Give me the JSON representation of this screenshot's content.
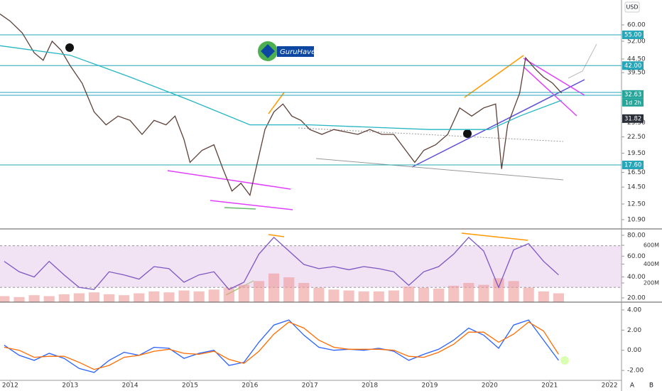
{
  "usd": "USD",
  "logo": "GuruHaven",
  "scale_buttons": [
    "A",
    "B"
  ],
  "countdown": "1d 2h",
  "chart_data": [
    {
      "type": "line",
      "log": true,
      "xlim": [
        2011.83,
        2022.2
      ],
      "ylim": [
        10.05,
        74.6
      ],
      "yticks": [
        {
          "value": 60,
          "label": "60.00"
        },
        {
          "value": 52,
          "label": "52.00"
        },
        {
          "value": 44.5,
          "label": "44.50"
        },
        {
          "value": 39.5,
          "label": "39.50"
        },
        {
          "value": 25.5,
          "label": "25.50"
        },
        {
          "value": 22.5,
          "label": "22.50"
        },
        {
          "value": 19.5,
          "label": "19.50"
        },
        {
          "value": 16.5,
          "label": "16.50"
        },
        {
          "value": 14.5,
          "label": "14.50"
        },
        {
          "value": 12.5,
          "label": "12.50"
        },
        {
          "value": 10.9,
          "label": "10.90"
        }
      ],
      "levels": [
        55,
        42,
        33.2,
        32.4,
        17.6
      ],
      "level_color": "#26a6b8",
      "price_labels": [
        {
          "value": 55,
          "label": "55.00",
          "color": "#26a6b8"
        },
        {
          "value": 42,
          "label": "42.00",
          "color": "#26a6b8"
        },
        {
          "value": 32.63,
          "label": "32.63",
          "color": "#26a69a"
        },
        {
          "value": 31.82,
          "label": "31.82",
          "color": "#2a2e39"
        },
        {
          "value": 17.6,
          "label": "17.60",
          "color": "#26a6b8"
        }
      ],
      "series": [
        {
          "color": "#5d4037",
          "x": [
            2011.83,
            2012.0,
            2012.2,
            2012.4,
            2012.55,
            2012.7,
            2012.85,
            2013.0,
            2013.2,
            2013.4,
            2013.6,
            2013.8,
            2014.0,
            2014.2,
            2014.4,
            2014.6,
            2014.75,
            2014.9,
            2015.0,
            2015.2,
            2015.4,
            2015.55,
            2015.7,
            2015.85,
            2016.0,
            2016.1,
            2016.25,
            2016.4,
            2016.55,
            2016.7,
            2016.85,
            2017.0,
            2017.2,
            2017.4,
            2017.6,
            2017.8,
            2018.0,
            2018.2,
            2018.4,
            2018.6,
            2018.75,
            2018.9,
            2019.1,
            2019.3,
            2019.5,
            2019.7,
            2019.9,
            2020.1,
            2020.2,
            2020.3,
            2020.5,
            2020.6,
            2020.75,
            2020.9,
            2021.05,
            2021.2
          ],
          "values": [
            66,
            62,
            56,
            47,
            44,
            52,
            48,
            42,
            36,
            28,
            25,
            27,
            26,
            23,
            26,
            25,
            27,
            22,
            18,
            20,
            21,
            17,
            14,
            15,
            13.5,
            17,
            24,
            28,
            30,
            27,
            26,
            24,
            23,
            24,
            23.5,
            23,
            24,
            23,
            23,
            20,
            18,
            20,
            21,
            23,
            29,
            27,
            29,
            30,
            17,
            25,
            33,
            45,
            41,
            38,
            36,
            33
          ]
        },
        {
          "color": "#26b5c2",
          "x": [
            2011.83,
            2013,
            2014,
            2015,
            2016,
            2017,
            2018,
            2019,
            2019.5,
            2020,
            2020.5,
            2021.2
          ],
          "values": [
            50,
            46,
            38,
            31,
            25,
            25,
            24.5,
            24,
            24,
            24,
            27,
            31
          ]
        }
      ]
    },
    {
      "type": "line",
      "xlim": [
        2011.83,
        2022.2
      ],
      "ylim": [
        15.9,
        86.1
      ],
      "band": [
        30,
        70
      ],
      "band_color": "#e1bee7",
      "yticks": [
        {
          "value": 80,
          "label": "80.00"
        },
        {
          "value": 60,
          "label": "60.00"
        },
        {
          "value": 40,
          "label": "40.00"
        },
        {
          "value": 20,
          "label": "20.00"
        }
      ],
      "y2lim": [
        -4000000,
        774000000
      ],
      "y2ticks": [
        {
          "value": 600000000,
          "label": "600M"
        },
        {
          "value": 400000000,
          "label": "400M"
        },
        {
          "value": 200000000,
          "label": "200M"
        }
      ],
      "x": [
        2011.9,
        2012.15,
        2012.4,
        2012.65,
        2012.9,
        2013.15,
        2013.4,
        2013.65,
        2013.9,
        2014.15,
        2014.4,
        2014.65,
        2014.9,
        2015.15,
        2015.4,
        2015.65,
        2015.9,
        2016.15,
        2016.4,
        2016.65,
        2016.9,
        2017.15,
        2017.4,
        2017.65,
        2017.9,
        2018.15,
        2018.4,
        2018.65,
        2018.9,
        2019.15,
        2019.4,
        2019.65,
        2019.9,
        2020.15,
        2020.4,
        2020.65,
        2020.9,
        2021.15
      ],
      "series": [
        {
          "type": "bar",
          "axis": "y2",
          "color": "#ef9a9a",
          "values": [
            60000000,
            50000000,
            70000000,
            60000000,
            80000000,
            90000000,
            100000000,
            80000000,
            70000000,
            90000000,
            110000000,
            100000000,
            120000000,
            110000000,
            130000000,
            150000000,
            180000000,
            220000000,
            300000000,
            260000000,
            200000000,
            150000000,
            130000000,
            120000000,
            110000000,
            110000000,
            120000000,
            160000000,
            150000000,
            140000000,
            170000000,
            200000000,
            180000000,
            250000000,
            220000000,
            150000000,
            110000000,
            90000000
          ]
        },
        {
          "color": "#7e57c2",
          "values": [
            55,
            45,
            40,
            55,
            42,
            30,
            28,
            45,
            42,
            38,
            50,
            48,
            35,
            42,
            45,
            28,
            35,
            62,
            78,
            65,
            52,
            48,
            50,
            47,
            50,
            48,
            45,
            32,
            45,
            50,
            62,
            78,
            65,
            30,
            66,
            72,
            55,
            42
          ]
        }
      ]
    },
    {
      "type": "line",
      "xlim": [
        2011.83,
        2022.2
      ],
      "ylim": [
        -2.98,
        4.56
      ],
      "yticks": [
        {
          "value": 4,
          "label": "4.00"
        },
        {
          "value": 2,
          "label": "2.00"
        },
        {
          "value": 0,
          "label": "0.00"
        },
        {
          "value": -2,
          "label": "-2.00"
        }
      ],
      "xticks": [
        2012,
        2013,
        2014,
        2015,
        2016,
        2017,
        2018,
        2019,
        2020,
        2021,
        2022
      ],
      "x": [
        2011.9,
        2012.15,
        2012.4,
        2012.65,
        2012.9,
        2013.15,
        2013.4,
        2013.65,
        2013.9,
        2014.15,
        2014.4,
        2014.65,
        2014.9,
        2015.15,
        2015.4,
        2015.65,
        2015.9,
        2016.15,
        2016.4,
        2016.65,
        2016.9,
        2017.15,
        2017.4,
        2017.65,
        2017.9,
        2018.15,
        2018.4,
        2018.65,
        2018.9,
        2019.15,
        2019.4,
        2019.65,
        2019.9,
        2020.15,
        2020.4,
        2020.65,
        2020.9,
        2021.15
      ],
      "series": [
        {
          "color": "#2962ff",
          "values": [
            0.5,
            -0.5,
            -1,
            -0.3,
            -0.8,
            -1.8,
            -2.2,
            -1,
            -0.2,
            -0.5,
            0.3,
            0.2,
            -0.8,
            -0.3,
            0,
            -1.5,
            -1.2,
            0.8,
            2.5,
            3,
            1.5,
            0.3,
            0,
            0.1,
            0,
            0.2,
            -0.1,
            -1,
            -0.4,
            0.1,
            1,
            2.2,
            1.5,
            0.2,
            2.5,
            3,
            1,
            -1
          ]
        },
        {
          "color": "#ff6d00",
          "values": [
            0.3,
            0,
            -0.7,
            -0.6,
            -0.6,
            -1.2,
            -1.9,
            -1.5,
            -0.7,
            -0.5,
            -0.1,
            0.1,
            -0.3,
            -0.4,
            -0.1,
            -0.9,
            -1.3,
            -0.1,
            1.6,
            2.8,
            2.2,
            1,
            0.3,
            0.1,
            0.1,
            0.1,
            0,
            -0.6,
            -0.7,
            -0.2,
            0.6,
            1.8,
            1.8,
            0.8,
            1.6,
            2.8,
            1.9,
            -0.4
          ]
        }
      ]
    }
  ]
}
